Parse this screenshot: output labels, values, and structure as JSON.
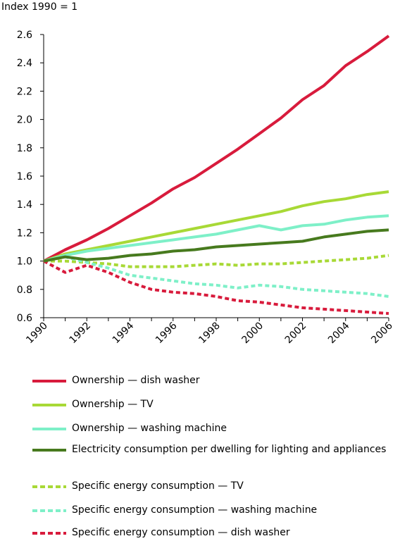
{
  "chart_data": {
    "type": "line",
    "ylabel": "Index 1990 = 1",
    "ylim": [
      0.6,
      2.6
    ],
    "yticks": [
      "0.6",
      "0.8",
      "1.0",
      "1.2",
      "1.4",
      "1.6",
      "1.8",
      "2.0",
      "2.2",
      "2.4",
      "2.6"
    ],
    "xlim": [
      1990,
      2006
    ],
    "xticks": [
      "1990",
      "1992",
      "1994",
      "1996",
      "1998",
      "2000",
      "2002",
      "2004",
      "2006"
    ],
    "x": [
      1990,
      1991,
      1992,
      1993,
      1994,
      1995,
      1996,
      1997,
      1998,
      1999,
      2000,
      2001,
      2002,
      2003,
      2004,
      2005,
      2006
    ],
    "grid": false,
    "legend_position": "bottom",
    "series": [
      {
        "name": "Ownership — dish washer",
        "color": "#d81b3c",
        "dash": "solid",
        "values": [
          1.0,
          1.08,
          1.15,
          1.23,
          1.32,
          1.41,
          1.51,
          1.59,
          1.69,
          1.79,
          1.9,
          2.01,
          2.14,
          2.24,
          2.38,
          2.48,
          2.59
        ]
      },
      {
        "name": "Ownership — TV",
        "color": "#a8d936",
        "dash": "solid",
        "values": [
          1.0,
          1.05,
          1.08,
          1.11,
          1.14,
          1.17,
          1.2,
          1.23,
          1.26,
          1.29,
          1.32,
          1.35,
          1.39,
          1.42,
          1.44,
          1.47,
          1.49
        ]
      },
      {
        "name": "Ownership — washing machine",
        "color": "#7ef0c8",
        "dash": "solid",
        "values": [
          1.0,
          1.04,
          1.07,
          1.09,
          1.11,
          1.13,
          1.15,
          1.17,
          1.19,
          1.22,
          1.25,
          1.22,
          1.25,
          1.26,
          1.29,
          1.31,
          1.32
        ]
      },
      {
        "name": "Electricity consumption per dwelling for lighting and appliances",
        "color": "#477a1e",
        "dash": "solid",
        "values": [
          1.0,
          1.03,
          1.01,
          1.02,
          1.04,
          1.05,
          1.07,
          1.08,
          1.1,
          1.11,
          1.12,
          1.13,
          1.14,
          1.17,
          1.19,
          1.21,
          1.22
        ]
      },
      {
        "name": "Specific energy consumption — TV",
        "color": "#a8d936",
        "dash": "dashed",
        "values": [
          1.0,
          1.0,
          0.99,
          0.98,
          0.96,
          0.96,
          0.96,
          0.97,
          0.98,
          0.97,
          0.98,
          0.98,
          0.99,
          1.0,
          1.01,
          1.02,
          1.04
        ]
      },
      {
        "name": "Specific energy consumption — washing machine",
        "color": "#7ef0c8",
        "dash": "dashed",
        "values": [
          1.0,
          1.03,
          0.99,
          0.95,
          0.9,
          0.88,
          0.86,
          0.84,
          0.83,
          0.81,
          0.83,
          0.82,
          0.8,
          0.79,
          0.78,
          0.77,
          0.75
        ]
      },
      {
        "name": "Specific energy consumption — dish washer",
        "color": "#d81b3c",
        "dash": "dashed",
        "values": [
          1.0,
          0.92,
          0.97,
          0.92,
          0.85,
          0.8,
          0.78,
          0.77,
          0.75,
          0.72,
          0.71,
          0.69,
          0.67,
          0.66,
          0.65,
          0.64,
          0.63
        ]
      }
    ]
  }
}
